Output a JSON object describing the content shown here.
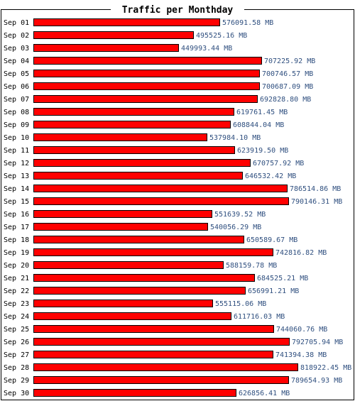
{
  "chart_data": {
    "type": "bar",
    "orientation": "horizontal",
    "title": "Traffic per Monthday",
    "unit": "MB",
    "categories": [
      "Sep 01",
      "Sep 02",
      "Sep 03",
      "Sep 04",
      "Sep 05",
      "Sep 06",
      "Sep 07",
      "Sep 08",
      "Sep 09",
      "Sep 10",
      "Sep 11",
      "Sep 12",
      "Sep 13",
      "Sep 14",
      "Sep 15",
      "Sep 16",
      "Sep 17",
      "Sep 18",
      "Sep 19",
      "Sep 20",
      "Sep 21",
      "Sep 22",
      "Sep 23",
      "Sep 24",
      "Sep 25",
      "Sep 26",
      "Sep 27",
      "Sep 28",
      "Sep 29",
      "Sep 30"
    ],
    "values": [
      576091.58,
      495525.16,
      449993.44,
      707225.92,
      700746.57,
      700687.09,
      692828.8,
      619761.45,
      608844.04,
      537984.1,
      623919.5,
      670757.92,
      646532.42,
      786514.86,
      790146.31,
      551639.52,
      540056.29,
      650589.67,
      742816.82,
      588159.78,
      684525.21,
      656991.21,
      555115.06,
      611716.03,
      744060.76,
      792705.94,
      741394.38,
      818922.45,
      789654.93,
      626856.41
    ],
    "value_labels": [
      "576091.58 MB",
      "495525.16 MB",
      "449993.44 MB",
      "707225.92 MB",
      "700746.57 MB",
      "700687.09 MB",
      "692828.80 MB",
      "619761.45 MB",
      "608844.04 MB",
      "537984.10 MB",
      "623919.50 MB",
      "670757.92 MB",
      "646532.42 MB",
      "786514.86 MB",
      "790146.31 MB",
      "551639.52 MB",
      "540056.29 MB",
      "650589.67 MB",
      "742816.82 MB",
      "588159.78 MB",
      "684525.21 MB",
      "656991.21 MB",
      "555115.06 MB",
      "611716.03 MB",
      "744060.76 MB",
      "792705.94 MB",
      "741394.38 MB",
      "818922.45 MB",
      "789654.93 MB",
      "626856.41 MB"
    ],
    "xlim": [
      0,
      818922.45
    ],
    "grid": false,
    "legend": "none",
    "colors": {
      "bar_fill": "#ff0000",
      "bar_stroke": "#000000",
      "value_text": "#2f4f7f",
      "label_text": "#000000",
      "frame": "#000000",
      "background": "#ffffff"
    }
  }
}
